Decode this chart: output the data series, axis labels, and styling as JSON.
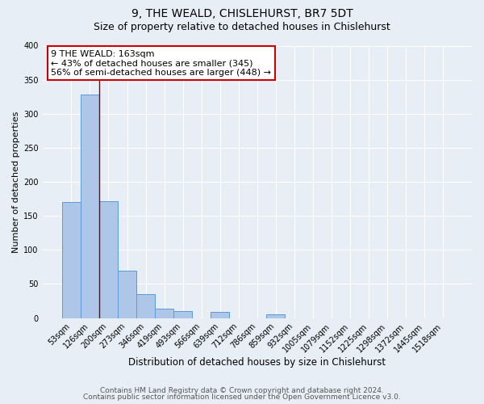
{
  "title": "9, THE WEALD, CHISLEHURST, BR7 5DT",
  "subtitle": "Size of property relative to detached houses in Chislehurst",
  "xlabel": "Distribution of detached houses by size in Chislehurst",
  "ylabel": "Number of detached properties",
  "bar_labels": [
    "53sqm",
    "126sqm",
    "200sqm",
    "273sqm",
    "346sqm",
    "419sqm",
    "493sqm",
    "566sqm",
    "639sqm",
    "712sqm",
    "786sqm",
    "859sqm",
    "932sqm",
    "1005sqm",
    "1079sqm",
    "1152sqm",
    "1225sqm",
    "1298sqm",
    "1372sqm",
    "1445sqm",
    "1518sqm"
  ],
  "bar_values": [
    170,
    328,
    172,
    70,
    35,
    14,
    10,
    0,
    9,
    0,
    0,
    5,
    0,
    0,
    0,
    0,
    0,
    0,
    0,
    0,
    0
  ],
  "bar_color": "#aec6e8",
  "bar_edgecolor": "#5b9bd5",
  "vline_color": "#8b0000",
  "annotation_text": "9 THE WEALD: 163sqm\n← 43% of detached houses are smaller (345)\n56% of semi-detached houses are larger (448) →",
  "annotation_box_edgecolor": "#cc0000",
  "annotation_box_facecolor": "#ffffff",
  "ylim": [
    0,
    400
  ],
  "yticks": [
    0,
    50,
    100,
    150,
    200,
    250,
    300,
    350,
    400
  ],
  "footer_line1": "Contains HM Land Registry data © Crown copyright and database right 2024.",
  "footer_line2": "Contains public sector information licensed under the Open Government Licence v3.0.",
  "bg_color": "#e8eef5",
  "title_fontsize": 10,
  "subtitle_fontsize": 9,
  "xlabel_fontsize": 8.5,
  "ylabel_fontsize": 8,
  "tick_fontsize": 7,
  "annotation_fontsize": 8,
  "footer_fontsize": 6.5
}
